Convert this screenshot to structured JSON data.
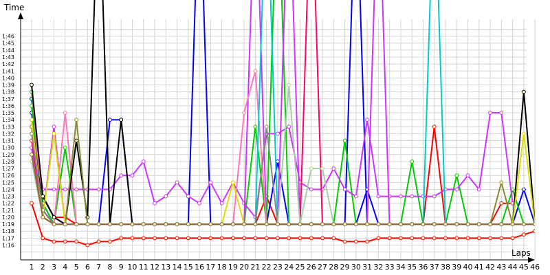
{
  "chart_data": {
    "type": "line",
    "title": "",
    "ylabel": "Time",
    "xlabel": "Laps",
    "x": [
      1,
      2,
      3,
      4,
      5,
      6,
      7,
      8,
      9,
      10,
      11,
      12,
      13,
      14,
      15,
      16,
      17,
      18,
      19,
      20,
      21,
      22,
      23,
      24,
      25,
      26,
      27,
      28,
      29,
      30,
      31,
      32,
      33,
      34,
      35,
      36,
      37,
      38,
      39,
      40,
      41,
      42,
      43,
      44,
      45,
      46
    ],
    "y_ticks": [
      "1:16",
      "1:17",
      "1:18",
      "1:19",
      "1:20",
      "1:21",
      "1:22",
      "1:23",
      "1:24",
      "1:25",
      "1:26",
      "1:27",
      "1:28",
      "1:29",
      "1:30",
      "1:31",
      "1:32",
      "1:33",
      "1:34",
      "1:35",
      "1:36",
      "1:37",
      "1:38",
      "1:39",
      "1:40",
      "1:41",
      "1:42",
      "1:43",
      "1:44",
      "1:45",
      "1:46"
    ],
    "ylim_seconds": [
      75,
      107.5
    ],
    "grid": true,
    "legend": "none",
    "series": [
      {
        "color": "#ff0000",
        "values": [
          82,
          77,
          76.5,
          76.5,
          76.5,
          76,
          76.5,
          76.5,
          77,
          77,
          77,
          77,
          77,
          77,
          77,
          77,
          77,
          77,
          77,
          77,
          77,
          77,
          77,
          77,
          77,
          77,
          77,
          77,
          76.5,
          76.5,
          76.5,
          77,
          77,
          77,
          77,
          77,
          77,
          77,
          77,
          77,
          77,
          77,
          77,
          77,
          77.5,
          78
        ]
      },
      {
        "color": "#ff0000",
        "values": [
          92,
          83,
          80,
          80,
          79,
          79,
          79,
          79,
          79,
          79,
          79,
          79,
          79,
          79,
          79,
          79,
          79,
          79,
          79,
          79,
          79,
          83,
          79,
          79,
          79,
          79,
          79,
          79,
          79,
          79,
          79,
          79,
          79,
          79,
          79,
          79,
          93,
          79,
          79,
          79,
          79,
          79,
          82,
          82,
          null,
          null
        ]
      },
      {
        "color": "#0000ff",
        "values": [
          97,
          83,
          80,
          79,
          79,
          79,
          79,
          94,
          94,
          79,
          79,
          79,
          79,
          79,
          79,
          130,
          79,
          79,
          79,
          79,
          79,
          79,
          88,
          79,
          79,
          79,
          79,
          79,
          79,
          130,
          79,
          79,
          79,
          79,
          79,
          79,
          79,
          79,
          79,
          79,
          79,
          79,
          79,
          79,
          84,
          79
        ]
      },
      {
        "color": "#0000ff",
        "values": [
          95,
          82,
          79,
          79,
          79,
          79,
          79,
          79,
          79,
          79,
          79,
          79,
          79,
          79,
          79,
          79,
          79,
          79,
          79,
          79,
          79,
          79,
          79,
          79,
          79,
          79,
          79,
          79,
          79,
          79,
          84,
          79,
          79,
          79,
          79,
          79,
          79,
          79,
          79,
          79,
          79,
          79,
          79,
          79,
          79,
          79
        ]
      },
      {
        "color": "#00cc00",
        "values": [
          96,
          81,
          79,
          90,
          79,
          79,
          79,
          79,
          79,
          79,
          79,
          79,
          79,
          79,
          79,
          79,
          79,
          79,
          79,
          79,
          79,
          79,
          79,
          79,
          79,
          79,
          79,
          79,
          91,
          79,
          79,
          79,
          79,
          79,
          88,
          79,
          79,
          79,
          79,
          79,
          79,
          79,
          79,
          79,
          79,
          79
        ]
      },
      {
        "color": "#00cc00",
        "values": [
          98,
          82,
          79,
          79,
          79,
          79,
          79,
          79,
          79,
          79,
          79,
          79,
          79,
          79,
          79,
          79,
          79,
          79,
          79,
          79,
          93,
          79,
          130,
          79,
          79,
          79,
          79,
          79,
          79,
          79,
          79,
          79,
          79,
          79,
          79,
          79,
          79,
          79,
          86,
          79,
          79,
          79,
          79,
          84,
          79,
          79
        ]
      },
      {
        "color": "#cc33ff",
        "values": [
          93,
          84,
          84,
          84,
          84,
          84,
          84,
          84,
          86,
          86,
          88,
          82,
          83,
          85,
          83,
          82,
          85,
          82,
          85,
          82,
          80,
          92,
          92,
          93,
          85,
          84,
          84,
          87,
          84,
          83,
          94,
          83,
          83,
          83,
          83,
          83,
          83,
          84,
          84,
          86,
          84,
          95,
          95,
          82,
          null,
          null
        ]
      },
      {
        "color": "#cc33ff",
        "values": [
          90,
          80,
          93,
          79,
          79,
          79,
          79,
          79,
          79,
          79,
          79,
          79,
          79,
          79,
          79,
          79,
          79,
          79,
          79,
          79,
          130,
          79,
          79,
          130,
          79,
          79,
          79,
          79,
          79,
          79,
          79,
          130,
          79,
          79,
          79,
          79,
          79,
          79,
          79,
          79,
          79,
          79,
          79,
          79,
          79,
          79
        ]
      },
      {
        "color": "#ff77bb",
        "values": [
          99,
          80,
          79,
          95,
          79,
          79,
          79,
          79,
          79,
          79,
          79,
          79,
          79,
          79,
          79,
          79,
          79,
          79,
          79,
          95,
          101,
          79,
          79,
          79,
          79,
          79,
          79,
          79,
          79,
          79,
          79,
          79,
          79,
          79,
          79,
          79,
          79,
          79,
          79,
          79,
          79,
          79,
          79,
          79,
          79,
          79
        ]
      },
      {
        "color": "#ff0066",
        "values": [
          91,
          81,
          79,
          79,
          79,
          79,
          79,
          79,
          79,
          79,
          79,
          79,
          79,
          79,
          79,
          79,
          79,
          79,
          79,
          79,
          79,
          79,
          79,
          79,
          79,
          130,
          79,
          79,
          79,
          79,
          79,
          79,
          79,
          79,
          79,
          79,
          79,
          79,
          79,
          79,
          79,
          79,
          79,
          79,
          79,
          79
        ]
      },
      {
        "color": "#000000",
        "values": [
          94,
          81,
          79,
          79,
          79,
          79,
          79,
          79,
          79,
          79,
          79,
          79,
          79,
          79,
          79,
          79,
          79,
          79,
          79,
          79,
          79,
          79,
          79,
          79,
          79,
          79,
          79,
          79,
          79,
          79,
          79,
          79,
          79,
          79,
          79,
          79,
          79,
          79,
          79,
          79,
          79,
          79,
          79,
          79,
          98,
          79
        ]
      },
      {
        "color": "#000000",
        "values": [
          99,
          83,
          80,
          79,
          91,
          80,
          130,
          79,
          94,
          79,
          79,
          79,
          79,
          79,
          79,
          79,
          79,
          79,
          79,
          79,
          79,
          79,
          79,
          79,
          79,
          79,
          79,
          79,
          79,
          79,
          79,
          79,
          79,
          79,
          79,
          79,
          79,
          79,
          79,
          79,
          79,
          79,
          79,
          79,
          79,
          79
        ]
      },
      {
        "color": "#888833",
        "values": [
          93,
          80,
          79,
          79,
          94,
          79,
          79,
          79,
          79,
          79,
          79,
          79,
          79,
          79,
          79,
          79,
          79,
          79,
          79,
          79,
          79,
          79,
          79,
          79,
          79,
          79,
          79,
          79,
          79,
          79,
          79,
          79,
          79,
          79,
          79,
          79,
          79,
          79,
          79,
          79,
          79,
          79,
          85,
          79,
          79,
          79
        ]
      },
      {
        "color": "#dddd00",
        "values": [
          94,
          80,
          92,
          79,
          79,
          79,
          79,
          79,
          79,
          79,
          79,
          79,
          79,
          79,
          79,
          79,
          79,
          79,
          85,
          79,
          79,
          79,
          79,
          79,
          79,
          79,
          79,
          79,
          79,
          79,
          79,
          79,
          79,
          79,
          79,
          79,
          79,
          79,
          79,
          79,
          79,
          79,
          79,
          79,
          92,
          79
        ]
      },
      {
        "color": "#00cccc",
        "values": [
          89,
          80,
          79,
          79,
          79,
          79,
          79,
          79,
          79,
          79,
          79,
          79,
          79,
          79,
          79,
          79,
          79,
          79,
          79,
          79,
          79,
          130,
          79,
          79,
          79,
          79,
          79,
          79,
          79,
          79,
          79,
          79,
          79,
          79,
          79,
          79,
          130,
          79,
          79,
          79,
          79,
          79,
          79,
          79,
          79,
          79
        ]
      },
      {
        "color": "#888888",
        "values": [
          92,
          81,
          79,
          79,
          79,
          79,
          79,
          79,
          79,
          79,
          79,
          79,
          79,
          79,
          79,
          79,
          79,
          79,
          79,
          79,
          79,
          93,
          79,
          79,
          79,
          79,
          79,
          79,
          79,
          79,
          79,
          79,
          79,
          79,
          79,
          79,
          79,
          79,
          79,
          79,
          79,
          79,
          79,
          79,
          79,
          79
        ]
      },
      {
        "color": "#aaccaa",
        "values": [
          88,
          80,
          79,
          79,
          79,
          79,
          79,
          79,
          79,
          79,
          79,
          79,
          79,
          79,
          79,
          79,
          79,
          79,
          79,
          79,
          79,
          79,
          79,
          99,
          79,
          87,
          87,
          79,
          79,
          79,
          79,
          79,
          79,
          79,
          79,
          79,
          79,
          79,
          79,
          79,
          79,
          79,
          79,
          79,
          79,
          79
        ]
      },
      {
        "color": "#996633",
        "values": [
          89,
          80,
          79,
          79,
          79,
          79,
          79,
          79,
          79,
          79,
          79,
          79,
          79,
          79,
          79,
          79,
          79,
          79,
          79,
          79,
          79,
          79,
          79,
          79,
          79,
          79,
          79,
          79,
          79,
          79,
          79,
          79,
          79,
          79,
          79,
          79,
          79,
          79,
          79,
          79,
          79,
          79,
          79,
          79,
          79,
          79
        ]
      }
    ]
  }
}
